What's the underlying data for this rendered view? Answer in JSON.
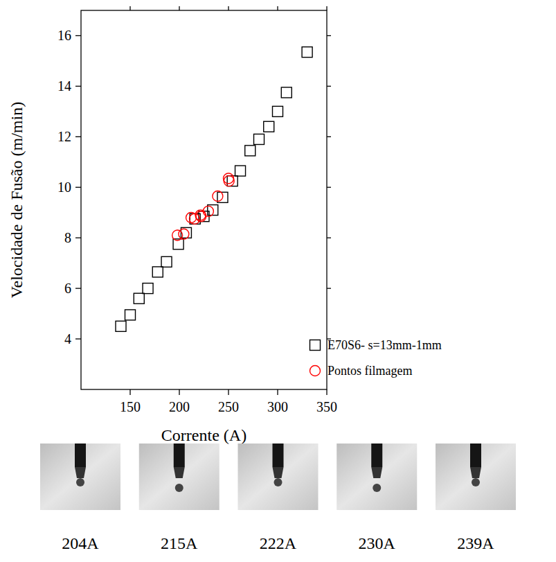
{
  "chart_data": {
    "type": "scatter",
    "xlabel": "Corrente (A)",
    "ylabel": "Velocidade de Fusão (m/min)",
    "xlim": [
      100,
      350
    ],
    "ylim": [
      2,
      17
    ],
    "xticks": [
      150,
      200,
      250,
      300,
      350
    ],
    "yticks": [
      4,
      6,
      8,
      10,
      12,
      14,
      16
    ],
    "legend": "lower right",
    "series": [
      {
        "name": "E70S6- s=13mm-1mm",
        "color": "#000000",
        "marker": "square",
        "x": [
          140.5,
          150,
          159,
          168,
          178,
          187,
          199,
          207,
          216,
          225,
          234,
          244,
          254,
          262,
          272,
          281,
          291,
          300,
          309,
          330
        ],
        "values": [
          4.5,
          4.95,
          5.6,
          6.0,
          6.65,
          7.05,
          7.75,
          8.2,
          8.75,
          8.85,
          9.1,
          9.6,
          10.25,
          10.65,
          11.45,
          11.9,
          12.4,
          13.0,
          13.75,
          15.35
        ]
      },
      {
        "name": "Pontos filmagem",
        "color": "#ff0000",
        "marker": "circle",
        "x": [
          198,
          204.5,
          212,
          215.5,
          221.5,
          222,
          229.5,
          239,
          250,
          250.5
        ],
        "values": [
          8.1,
          8.15,
          8.8,
          8.75,
          8.9,
          8.85,
          9.05,
          9.65,
          10.35,
          10.25
        ]
      }
    ]
  },
  "frames": [
    "204A",
    "215A",
    "222A",
    "230A",
    "239A"
  ]
}
